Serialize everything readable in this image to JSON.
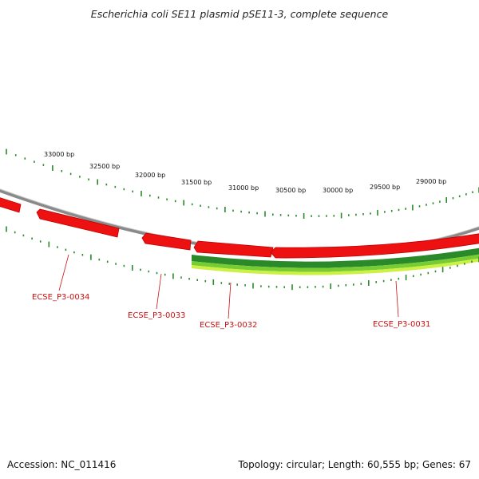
{
  "title": "Escherichia coli SE11 plasmid pSE11-3, complete sequence",
  "footer": {
    "accession": "Accession: NC_011416",
    "summary": "Topology: circular; Length: 60,555 bp; Genes: 67"
  },
  "scale_labels": [
    "33000 bp",
    "32500 bp",
    "32000 bp",
    "31500 bp",
    "31000 bp",
    "30500 bp",
    "30000 bp",
    "29500 bp",
    "29000 bp"
  ],
  "gene_labels": [
    "ECSE_P3-0034",
    "ECSE_P3-0033",
    "ECSE_P3-0032",
    "ECSE_P3-0031"
  ],
  "colors": {
    "backbone": "#8a8a8a",
    "gene_forward": "#ee1111",
    "gene_reverse_dark": "#2a8a2a",
    "gene_reverse_light": "#b8ee33",
    "tick": "#2a8a2a",
    "gene_label": "#cc1111"
  }
}
